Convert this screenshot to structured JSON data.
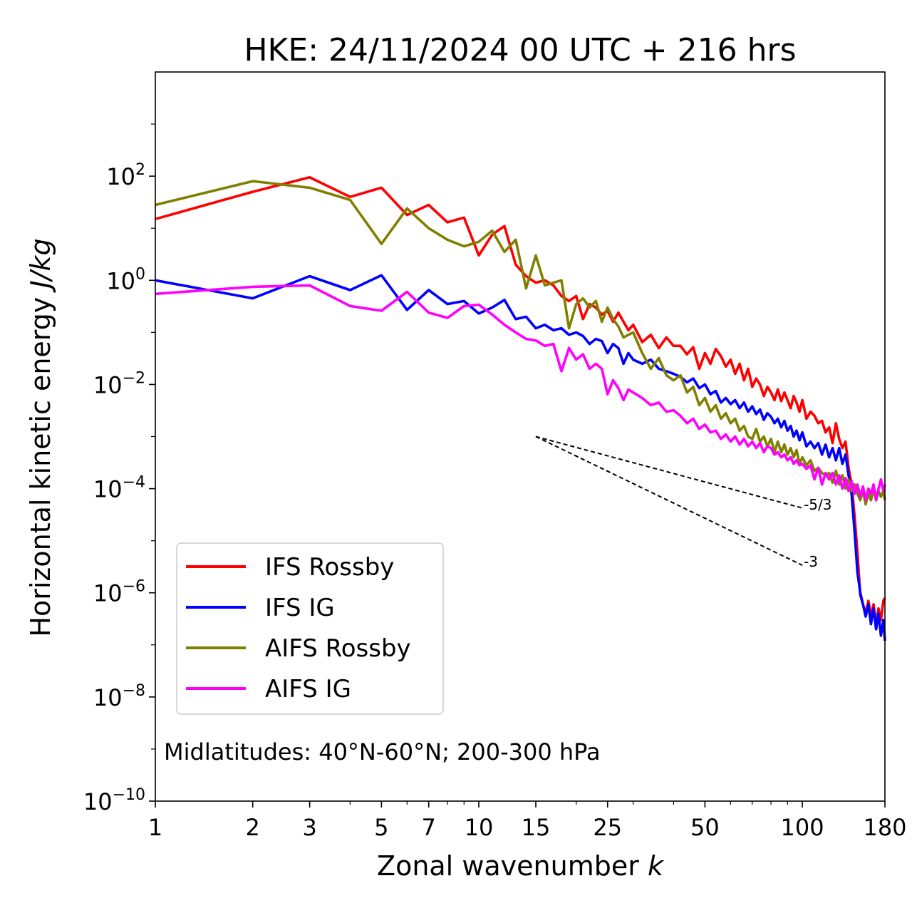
{
  "chart_data": {
    "type": "line",
    "title": "HKE: 24/11/2024 00 UTC + 216 hrs",
    "xlabel": "Zonal wavenumber",
    "xlabel_var": "k",
    "ylabel": "Horizontal kinetic energy",
    "ylabel_unit": "J/kg",
    "xscale": "log",
    "yscale": "log",
    "xlim": [
      1,
      180
    ],
    "ylim_exp": [
      -10,
      4
    ],
    "x_ticks": [
      1,
      2,
      3,
      5,
      7,
      10,
      15,
      25,
      50,
      100,
      180
    ],
    "x_tick_labels": [
      "1",
      "2",
      "3",
      "5",
      "7",
      "10",
      "15",
      "25",
      "50",
      "100",
      "180"
    ],
    "y_ticks_exp": [
      -10,
      -8,
      -6,
      -4,
      -2,
      0,
      2
    ],
    "y_tick_base": "10",
    "y_tick_exponents": [
      "−10",
      "−8",
      "−6",
      "−4",
      "−2",
      "0",
      "2"
    ],
    "annotation": "Midlatitudes: 40°N-60°N; 200-300 hPa",
    "legend_position": "lower-left",
    "reference_lines": [
      {
        "label": "-5/3",
        "slope": -1.6667,
        "x0": 15,
        "x1": 100,
        "y0": 0.001
      },
      {
        "label": "-3",
        "slope": -3,
        "x0": 15,
        "x1": 100,
        "y0": 0.001
      }
    ],
    "series": [
      {
        "name": "IFS Rossby",
        "color": "#ff0000",
        "x": [
          1,
          2,
          3,
          4,
          5,
          6,
          7,
          8,
          9,
          10,
          11,
          12,
          13,
          14,
          15,
          16,
          17,
          18,
          19,
          20,
          21,
          22,
          23,
          24,
          25,
          26,
          27,
          28,
          29,
          30,
          32,
          34,
          36,
          38,
          40,
          42,
          44,
          46,
          48,
          50,
          52,
          54,
          56,
          58,
          60,
          62,
          64,
          66,
          68,
          70,
          72,
          74,
          76,
          78,
          80,
          82,
          84,
          86,
          88,
          90,
          92,
          94,
          96,
          98,
          100,
          103,
          106,
          109,
          112,
          115,
          118,
          121,
          124,
          127,
          130,
          133,
          136,
          139,
          142,
          145,
          148,
          151,
          154,
          157,
          160,
          163,
          166,
          169,
          172,
          175,
          178,
          180
        ],
        "y": [
          15,
          50,
          95,
          40,
          60,
          18,
          28,
          13,
          16,
          3.0,
          7.5,
          11,
          2.0,
          1.2,
          0.9,
          1.0,
          0.8,
          0.5,
          0.4,
          0.5,
          0.18,
          0.35,
          0.3,
          0.22,
          0.26,
          0.16,
          0.24,
          0.16,
          0.11,
          0.14,
          0.065,
          0.09,
          0.05,
          0.08,
          0.055,
          0.055,
          0.038,
          0.052,
          0.02,
          0.04,
          0.025,
          0.048,
          0.035,
          0.022,
          0.03,
          0.016,
          0.025,
          0.012,
          0.02,
          0.009,
          0.013,
          0.01,
          0.006,
          0.009,
          0.007,
          0.005,
          0.008,
          0.0048,
          0.007,
          0.005,
          0.0035,
          0.006,
          0.0045,
          0.003,
          0.005,
          0.0022,
          0.003,
          0.0025,
          0.0018,
          0.002,
          0.0012,
          0.0015,
          0.00075,
          0.0018,
          0.0009,
          0.0006,
          0.0008,
          0.00025,
          0.00012,
          3e-05,
          6e-06,
          9e-07,
          6e-07,
          4e-07,
          7e-07,
          3.5e-07,
          6e-07,
          2.5e-07,
          5e-07,
          3e-07,
          7e-07,
          8e-07
        ]
      },
      {
        "name": "IFS IG",
        "color": "#0000ff",
        "x": [
          1,
          2,
          3,
          4,
          5,
          6,
          7,
          8,
          9,
          10,
          11,
          12,
          13,
          14,
          15,
          16,
          17,
          18,
          19,
          20,
          21,
          22,
          23,
          24,
          25,
          26,
          27,
          28,
          29,
          30,
          32,
          34,
          36,
          38,
          40,
          42,
          44,
          46,
          48,
          50,
          52,
          54,
          56,
          58,
          60,
          62,
          64,
          66,
          68,
          70,
          72,
          74,
          76,
          78,
          80,
          82,
          84,
          86,
          88,
          90,
          92,
          94,
          96,
          98,
          100,
          103,
          106,
          109,
          112,
          115,
          118,
          121,
          124,
          127,
          130,
          133,
          136,
          139,
          142,
          145,
          148,
          151,
          154,
          157,
          160,
          163,
          166,
          169,
          172,
          175,
          178,
          180
        ],
        "y": [
          1.0,
          0.45,
          1.2,
          0.65,
          1.25,
          0.27,
          0.65,
          0.35,
          0.4,
          0.23,
          0.3,
          0.42,
          0.18,
          0.2,
          0.12,
          0.14,
          0.11,
          0.12,
          0.09,
          0.1,
          0.085,
          0.06,
          0.075,
          0.068,
          0.04,
          0.06,
          0.05,
          0.025,
          0.04,
          0.03,
          0.025,
          0.03,
          0.02,
          0.018,
          0.016,
          0.014,
          0.011,
          0.013,
          0.0085,
          0.01,
          0.0065,
          0.0075,
          0.0045,
          0.0055,
          0.0042,
          0.005,
          0.0035,
          0.0045,
          0.003,
          0.0038,
          0.0027,
          0.0033,
          0.0021,
          0.0028,
          0.0024,
          0.0018,
          0.0022,
          0.0015,
          0.002,
          0.0013,
          0.0016,
          0.001,
          0.0013,
          0.00085,
          0.0012,
          0.00065,
          0.0008,
          0.0006,
          0.00075,
          0.00045,
          0.0007,
          0.0004,
          0.0006,
          0.00035,
          0.0006,
          0.0003,
          0.00045,
          0.00018,
          8e-05,
          1.5e-05,
          2.5e-06,
          1e-06,
          6e-07,
          3.5e-07,
          6e-07,
          2.5e-07,
          5e-07,
          2e-07,
          4e-07,
          1.5e-07,
          3e-07,
          1.2e-07
        ]
      },
      {
        "name": "AIFS Rossby",
        "color": "#808000",
        "x": [
          1,
          2,
          3,
          4,
          5,
          6,
          7,
          8,
          9,
          10,
          11,
          12,
          13,
          14,
          15,
          16,
          17,
          18,
          19,
          20,
          21,
          22,
          23,
          24,
          25,
          26,
          27,
          28,
          29,
          30,
          32,
          34,
          36,
          38,
          40,
          42,
          44,
          46,
          48,
          50,
          52,
          54,
          56,
          58,
          60,
          62,
          64,
          66,
          68,
          70,
          72,
          74,
          76,
          78,
          80,
          82,
          84,
          86,
          88,
          90,
          92,
          94,
          96,
          98,
          100,
          103,
          106,
          109,
          112,
          115,
          118,
          121,
          124,
          127,
          130,
          133,
          136,
          139,
          142,
          145,
          148,
          151,
          154,
          157,
          160,
          163,
          166,
          169,
          172,
          175,
          178,
          180
        ],
        "y": [
          28,
          80,
          60,
          35,
          5.0,
          24,
          10,
          6.0,
          4.5,
          5.5,
          9.0,
          3.5,
          6.0,
          0.7,
          3.0,
          0.8,
          0.9,
          1.0,
          0.12,
          0.35,
          0.45,
          0.3,
          0.4,
          0.16,
          0.3,
          0.18,
          0.13,
          0.08,
          0.09,
          0.1,
          0.04,
          0.02,
          0.032,
          0.015,
          0.012,
          0.015,
          0.007,
          0.009,
          0.004,
          0.0055,
          0.003,
          0.004,
          0.0022,
          0.0028,
          0.0018,
          0.0022,
          0.0013,
          0.0016,
          0.001,
          0.0009,
          0.0014,
          0.0008,
          0.001,
          0.00065,
          0.0009,
          0.0005,
          0.0008,
          0.0005,
          0.0007,
          0.00045,
          0.0006,
          0.0004,
          0.00055,
          0.0003,
          0.0004,
          0.00028,
          0.00035,
          0.00022,
          0.00025,
          0.0002,
          0.00018,
          0.0002,
          0.00013,
          0.00022,
          0.00012,
          0.00018,
          0.0001,
          0.00015,
          9e-05,
          0.00012,
          8e-05,
          6e-05,
          9e-05,
          5e-05,
          8e-05,
          6e-05,
          0.0001,
          6e-05,
          9e-05,
          7e-05,
          9e-05,
          6e-05
        ]
      },
      {
        "name": "AIFS IG",
        "color": "#ff00ff",
        "x": [
          1,
          2,
          3,
          4,
          5,
          6,
          7,
          8,
          9,
          10,
          11,
          12,
          13,
          14,
          15,
          16,
          17,
          18,
          19,
          20,
          21,
          22,
          23,
          24,
          25,
          26,
          27,
          28,
          29,
          30,
          32,
          34,
          36,
          38,
          40,
          42,
          44,
          46,
          48,
          50,
          52,
          54,
          56,
          58,
          60,
          62,
          64,
          66,
          68,
          70,
          72,
          74,
          76,
          78,
          80,
          82,
          84,
          86,
          88,
          90,
          92,
          94,
          96,
          98,
          100,
          103,
          106,
          109,
          112,
          115,
          118,
          121,
          124,
          127,
          130,
          133,
          136,
          139,
          142,
          145,
          148,
          151,
          154,
          157,
          160,
          163,
          166,
          169,
          172,
          175,
          178,
          180
        ],
        "y": [
          0.55,
          0.75,
          0.8,
          0.32,
          0.26,
          0.6,
          0.24,
          0.19,
          0.32,
          0.34,
          0.22,
          0.14,
          0.1,
          0.075,
          0.07,
          0.055,
          0.06,
          0.018,
          0.05,
          0.03,
          0.038,
          0.02,
          0.025,
          0.02,
          0.0065,
          0.012,
          0.0085,
          0.005,
          0.008,
          0.007,
          0.0055,
          0.004,
          0.0045,
          0.003,
          0.0032,
          0.0025,
          0.0018,
          0.0022,
          0.0014,
          0.0017,
          0.0012,
          0.0013,
          0.0009,
          0.0011,
          0.0008,
          0.001,
          0.0007,
          0.0009,
          0.00065,
          0.0008,
          0.0006,
          0.00075,
          0.0005,
          0.00065,
          0.0006,
          0.00045,
          0.0005,
          0.0004,
          0.00045,
          0.00035,
          0.0004,
          0.0003,
          0.00035,
          0.00028,
          0.0003,
          0.00024,
          0.00028,
          0.00015,
          0.00025,
          0.00012,
          0.0002,
          0.00015,
          0.0002,
          0.00012,
          0.00018,
          0.0001,
          0.00016,
          9e-05,
          0.00014,
          8e-05,
          0.00012,
          7e-05,
          0.00011,
          6e-05,
          0.0001,
          8e-05,
          0.00012,
          6e-05,
          0.0001,
          0.00015,
          9e-05,
          0.00012
        ]
      }
    ]
  }
}
